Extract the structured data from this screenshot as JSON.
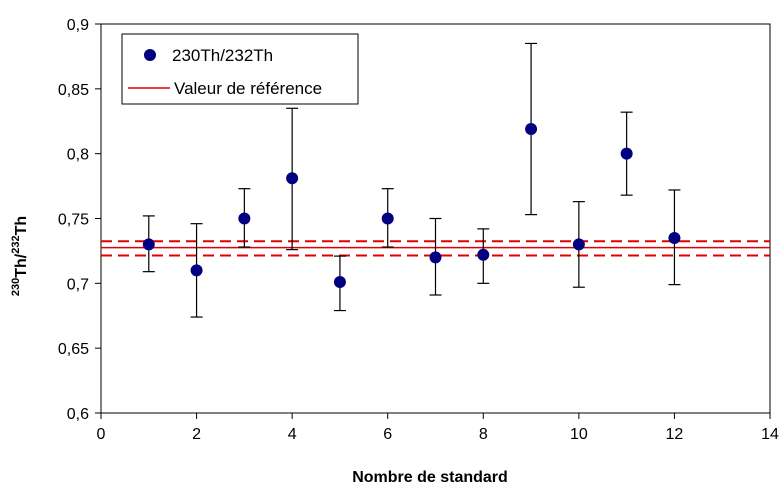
{
  "chart_data": {
    "type": "scatter",
    "title": "",
    "xlabel": "Nombre de standard",
    "ylabel": {
      "base1": "Th/",
      "sup1": "230",
      "base2": "Th",
      "sup2": "232"
    },
    "xlim": [
      0,
      14
    ],
    "ylim": [
      0.6,
      0.9
    ],
    "x_ticks": [
      0,
      2,
      4,
      6,
      8,
      10,
      12,
      14
    ],
    "x_tick_labels": [
      "0",
      "2",
      "4",
      "6",
      "8",
      "10",
      "12",
      "14"
    ],
    "y_ticks": [
      0.6,
      0.65,
      0.7,
      0.75,
      0.8,
      0.85,
      0.9
    ],
    "y_tick_labels": [
      "0,6",
      "0,65",
      "0,7",
      "0,75",
      "0,8",
      "0,85",
      "0,9"
    ],
    "grid": false,
    "legend_position": "top-left",
    "series": [
      {
        "name": "230Th/232Th",
        "color": "#000080",
        "x": [
          1,
          2,
          3,
          4,
          5,
          6,
          7,
          8,
          9,
          10,
          11,
          12
        ],
        "y": [
          0.73,
          0.71,
          0.75,
          0.781,
          0.701,
          0.75,
          0.72,
          0.722,
          0.819,
          0.73,
          0.8,
          0.735
        ],
        "err_upper": [
          0.752,
          0.746,
          0.773,
          0.835,
          0.721,
          0.773,
          0.75,
          0.742,
          0.885,
          0.763,
          0.832,
          0.772
        ],
        "err_lower": [
          0.709,
          0.674,
          0.728,
          0.726,
          0.679,
          0.728,
          0.691,
          0.7,
          0.753,
          0.697,
          0.768,
          0.699
        ]
      }
    ],
    "reference": {
      "name": "Valeur de référence",
      "color": "#e00000",
      "value": 0.7275,
      "upper": 0.7325,
      "lower": 0.7215
    }
  }
}
